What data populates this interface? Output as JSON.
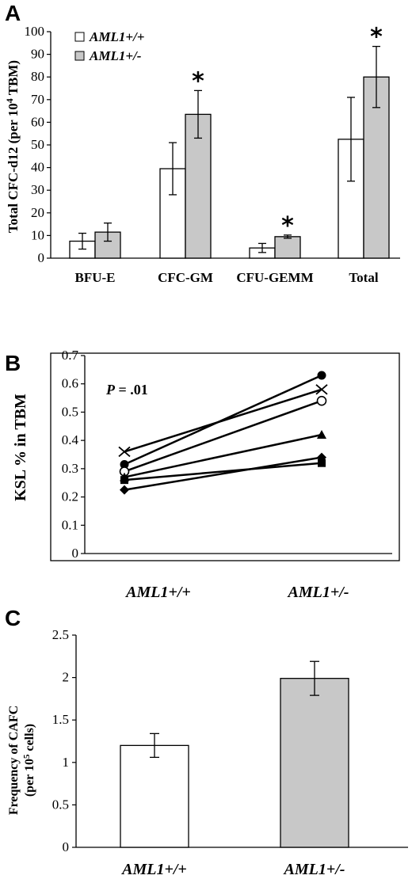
{
  "chart_data": [
    {
      "panel": "A",
      "type": "bar",
      "ylabel_parts": [
        "Total CFC-d12 (per 10",
        "4",
        " TBM)"
      ],
      "ylim": [
        0,
        100
      ],
      "yticks": [
        "0",
        "10",
        "20",
        "30",
        "40",
        "50",
        "60",
        "70",
        "80",
        "90",
        "100"
      ],
      "categories": [
        "BFU-E",
        "CFC-GM",
        "CFU-GEMM",
        "Total"
      ],
      "series": [
        {
          "name": "AML1+/+",
          "color": "#ffffff",
          "values": [
            7.5,
            39.5,
            4.5,
            52.5
          ],
          "errors": [
            3.5,
            11.5,
            2,
            18.5
          ]
        },
        {
          "name": "AML1+/-",
          "color": "#c8c8c8",
          "values": [
            11.5,
            63.5,
            9.5,
            80
          ],
          "errors": [
            4,
            10.5,
            0.7,
            13.5
          ]
        }
      ],
      "significance": [
        "",
        "*",
        "*",
        "*"
      ],
      "legend_position": "top-left",
      "grid": false
    },
    {
      "panel": "B",
      "type": "line",
      "ylabel": "KSL % in TBM",
      "ylim": [
        0,
        0.7
      ],
      "yticks": [
        "0",
        "0.1",
        "0.2",
        "0.3",
        "0.4",
        "0.5",
        "0.6",
        "0.7"
      ],
      "categories": [
        "AML1+/+",
        "AML1+/-"
      ],
      "annotation_p": "P",
      "annotation_val": " = .01",
      "series": [
        {
          "marker": "filled-circle",
          "values": [
            0.315,
            0.63
          ]
        },
        {
          "marker": "cross",
          "values": [
            0.36,
            0.58
          ]
        },
        {
          "marker": "open-circle",
          "values": [
            0.29,
            0.54
          ]
        },
        {
          "marker": "filled-triangle",
          "values": [
            0.27,
            0.42
          ]
        },
        {
          "marker": "filled-diamond",
          "values": [
            0.225,
            0.34
          ]
        },
        {
          "marker": "filled-square",
          "values": [
            0.26,
            0.32
          ]
        }
      ],
      "grid": false
    },
    {
      "panel": "C",
      "type": "bar",
      "ylabel_line1": "Frequency of CAFC",
      "ylabel_line2_parts": [
        "(per 10",
        "5",
        " cells)"
      ],
      "ylim": [
        0,
        2.5
      ],
      "yticks": [
        "0",
        "0.5",
        "1",
        "1.5",
        "2",
        "2.5"
      ],
      "categories": [
        "AML1+/+",
        "AML1+/-"
      ],
      "values": [
        1.2,
        1.99
      ],
      "errors": [
        0.14,
        0.2
      ],
      "colors": [
        "#ffffff",
        "#c8c8c8"
      ],
      "grid": false
    }
  ]
}
